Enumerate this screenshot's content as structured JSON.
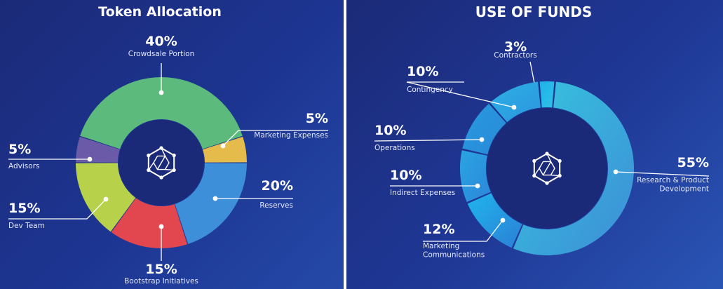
{
  "colors": {
    "background": "#1d3592",
    "hole": "#1b2a78"
  },
  "center_icon": "hexagon-network-icon",
  "chart_data": [
    {
      "type": "pie",
      "title": "Token Allocation",
      "slices": [
        {
          "percent_label": "40%",
          "label": "Crowdsale Portion",
          "value": 40,
          "color": "#5dba7d"
        },
        {
          "percent_label": "5%",
          "label": "Marketing Expenses",
          "value": 5,
          "color": "#e5bb4c"
        },
        {
          "percent_label": "20%",
          "label": "Reserves",
          "value": 20,
          "color": "#3d8fd9"
        },
        {
          "percent_label": "15%",
          "label": "Bootstrap Initiatives",
          "value": 15,
          "color": "#e2474f"
        },
        {
          "percent_label": "15%",
          "label": "Dev Team",
          "value": 15,
          "color": "#b7d24a"
        },
        {
          "percent_label": "5%",
          "label": "Advisors",
          "value": 5,
          "color": "#6a5aa8"
        }
      ]
    },
    {
      "type": "pie",
      "title": "USE OF FUNDS",
      "slices": [
        {
          "percent_label": "3%",
          "label": "Contractors",
          "value": 3,
          "color": "#2bb3e6"
        },
        {
          "percent_label": "55%",
          "label": "Research & Product Development",
          "label_lines": [
            "Research & Product",
            "Development"
          ],
          "value": 55,
          "color": "#37b0d9"
        },
        {
          "percent_label": "12%",
          "label": "Marketing Communications",
          "label_lines": [
            "Marketing",
            "Communications"
          ],
          "value": 12,
          "color": "#22aee6"
        },
        {
          "percent_label": "10%",
          "label": "Indirect Expenses",
          "value": 10,
          "color": "#2a9fe0"
        },
        {
          "percent_label": "10%",
          "label": "Operations",
          "value": 10,
          "color": "#2793db"
        },
        {
          "percent_label": "10%",
          "label": "Contingency",
          "value": 10,
          "color": "#2ba4e0"
        }
      ]
    }
  ]
}
